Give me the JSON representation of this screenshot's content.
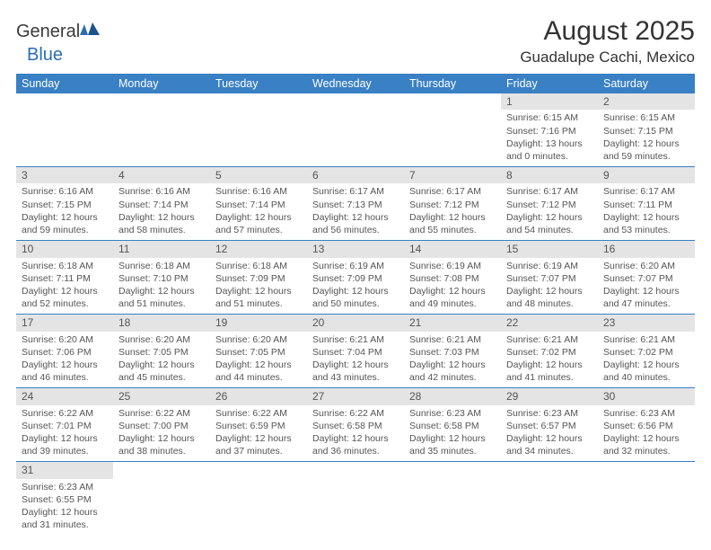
{
  "logo": {
    "general": "General",
    "blue": "Blue"
  },
  "title": "August 2025",
  "location": "Guadalupe Cachi, Mexico",
  "colors": {
    "header_bg": "#3980c4",
    "header_text": "#ffffff",
    "daynum_bg": "#e4e4e4",
    "text": "#555555",
    "rule": "#3980c4"
  },
  "weekdays": [
    "Sunday",
    "Monday",
    "Tuesday",
    "Wednesday",
    "Thursday",
    "Friday",
    "Saturday"
  ],
  "days": [
    {
      "n": 1,
      "sr": "6:15 AM",
      "ss": "7:16 PM",
      "dl": "13 hours and 0 minutes."
    },
    {
      "n": 2,
      "sr": "6:15 AM",
      "ss": "7:15 PM",
      "dl": "12 hours and 59 minutes."
    },
    {
      "n": 3,
      "sr": "6:16 AM",
      "ss": "7:15 PM",
      "dl": "12 hours and 59 minutes."
    },
    {
      "n": 4,
      "sr": "6:16 AM",
      "ss": "7:14 PM",
      "dl": "12 hours and 58 minutes."
    },
    {
      "n": 5,
      "sr": "6:16 AM",
      "ss": "7:14 PM",
      "dl": "12 hours and 57 minutes."
    },
    {
      "n": 6,
      "sr": "6:17 AM",
      "ss": "7:13 PM",
      "dl": "12 hours and 56 minutes."
    },
    {
      "n": 7,
      "sr": "6:17 AM",
      "ss": "7:12 PM",
      "dl": "12 hours and 55 minutes."
    },
    {
      "n": 8,
      "sr": "6:17 AM",
      "ss": "7:12 PM",
      "dl": "12 hours and 54 minutes."
    },
    {
      "n": 9,
      "sr": "6:17 AM",
      "ss": "7:11 PM",
      "dl": "12 hours and 53 minutes."
    },
    {
      "n": 10,
      "sr": "6:18 AM",
      "ss": "7:11 PM",
      "dl": "12 hours and 52 minutes."
    },
    {
      "n": 11,
      "sr": "6:18 AM",
      "ss": "7:10 PM",
      "dl": "12 hours and 51 minutes."
    },
    {
      "n": 12,
      "sr": "6:18 AM",
      "ss": "7:09 PM",
      "dl": "12 hours and 51 minutes."
    },
    {
      "n": 13,
      "sr": "6:19 AM",
      "ss": "7:09 PM",
      "dl": "12 hours and 50 minutes."
    },
    {
      "n": 14,
      "sr": "6:19 AM",
      "ss": "7:08 PM",
      "dl": "12 hours and 49 minutes."
    },
    {
      "n": 15,
      "sr": "6:19 AM",
      "ss": "7:07 PM",
      "dl": "12 hours and 48 minutes."
    },
    {
      "n": 16,
      "sr": "6:20 AM",
      "ss": "7:07 PM",
      "dl": "12 hours and 47 minutes."
    },
    {
      "n": 17,
      "sr": "6:20 AM",
      "ss": "7:06 PM",
      "dl": "12 hours and 46 minutes."
    },
    {
      "n": 18,
      "sr": "6:20 AM",
      "ss": "7:05 PM",
      "dl": "12 hours and 45 minutes."
    },
    {
      "n": 19,
      "sr": "6:20 AM",
      "ss": "7:05 PM",
      "dl": "12 hours and 44 minutes."
    },
    {
      "n": 20,
      "sr": "6:21 AM",
      "ss": "7:04 PM",
      "dl": "12 hours and 43 minutes."
    },
    {
      "n": 21,
      "sr": "6:21 AM",
      "ss": "7:03 PM",
      "dl": "12 hours and 42 minutes."
    },
    {
      "n": 22,
      "sr": "6:21 AM",
      "ss": "7:02 PM",
      "dl": "12 hours and 41 minutes."
    },
    {
      "n": 23,
      "sr": "6:21 AM",
      "ss": "7:02 PM",
      "dl": "12 hours and 40 minutes."
    },
    {
      "n": 24,
      "sr": "6:22 AM",
      "ss": "7:01 PM",
      "dl": "12 hours and 39 minutes."
    },
    {
      "n": 25,
      "sr": "6:22 AM",
      "ss": "7:00 PM",
      "dl": "12 hours and 38 minutes."
    },
    {
      "n": 26,
      "sr": "6:22 AM",
      "ss": "6:59 PM",
      "dl": "12 hours and 37 minutes."
    },
    {
      "n": 27,
      "sr": "6:22 AM",
      "ss": "6:58 PM",
      "dl": "12 hours and 36 minutes."
    },
    {
      "n": 28,
      "sr": "6:23 AM",
      "ss": "6:58 PM",
      "dl": "12 hours and 35 minutes."
    },
    {
      "n": 29,
      "sr": "6:23 AM",
      "ss": "6:57 PM",
      "dl": "12 hours and 34 minutes."
    },
    {
      "n": 30,
      "sr": "6:23 AM",
      "ss": "6:56 PM",
      "dl": "12 hours and 32 minutes."
    },
    {
      "n": 31,
      "sr": "6:23 AM",
      "ss": "6:55 PM",
      "dl": "12 hours and 31 minutes."
    }
  ],
  "first_weekday_index": 5,
  "labels": {
    "sunrise": "Sunrise:",
    "sunset": "Sunset:",
    "daylight": "Daylight:"
  }
}
